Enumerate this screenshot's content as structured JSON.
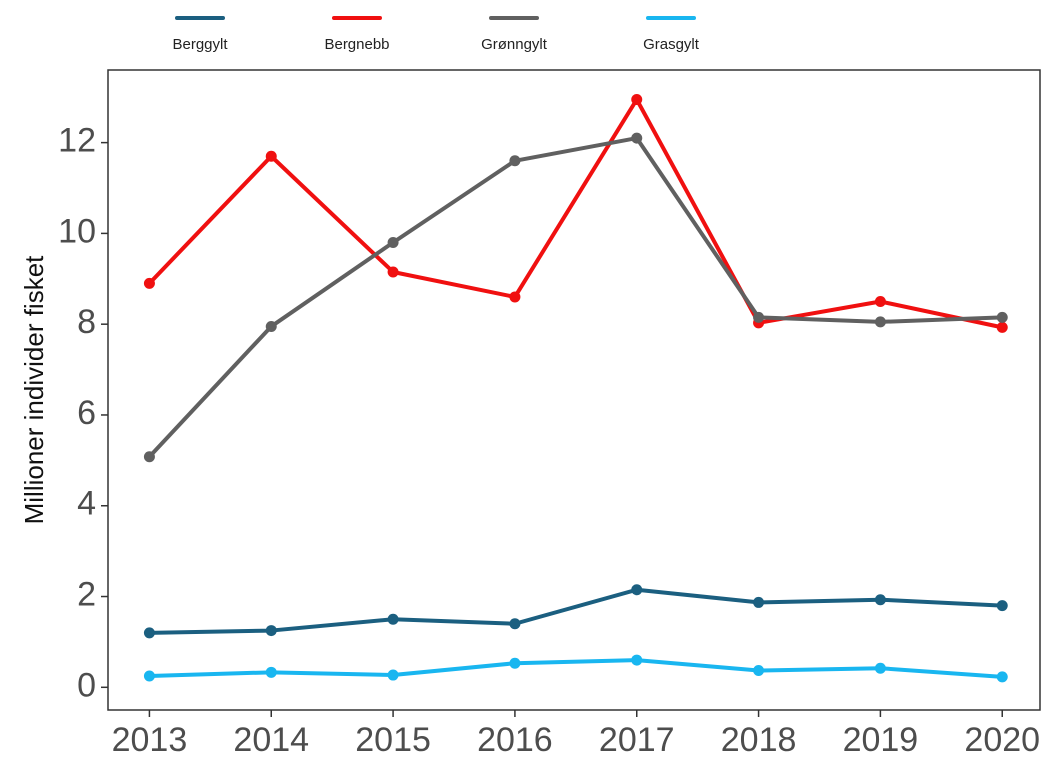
{
  "chart_data": {
    "type": "line",
    "x": [
      2013,
      2014,
      2015,
      2016,
      2017,
      2018,
      2019,
      2020
    ],
    "xlim": [
      2012.66,
      2020.31
    ],
    "xticks": [
      2013,
      2014,
      2015,
      2016,
      2017,
      2018,
      2019,
      2020
    ],
    "ylim": [
      -0.5,
      13.6
    ],
    "yticks": [
      0,
      2,
      4,
      6,
      8,
      10,
      12
    ],
    "y_label": "Millioner individer fisket",
    "grid": false,
    "legend": "top",
    "series": [
      {
        "name": "Berggylt",
        "color": "#1b5f80",
        "values": [
          1.2,
          1.25,
          1.5,
          1.4,
          2.15,
          1.87,
          1.93,
          1.8
        ]
      },
      {
        "name": "Bergnebb",
        "color": "#f01010",
        "values": [
          8.9,
          11.7,
          9.15,
          8.6,
          12.95,
          8.03,
          8.5,
          7.93
        ]
      },
      {
        "name": "Grønngylt",
        "color": "#606060",
        "values": [
          5.08,
          7.95,
          9.8,
          11.6,
          12.1,
          8.15,
          8.05,
          8.15
        ]
      },
      {
        "name": "Grasgylt",
        "color": "#19b6f0",
        "values": [
          0.25,
          0.33,
          0.27,
          0.53,
          0.6,
          0.37,
          0.42,
          0.23
        ]
      }
    ]
  }
}
